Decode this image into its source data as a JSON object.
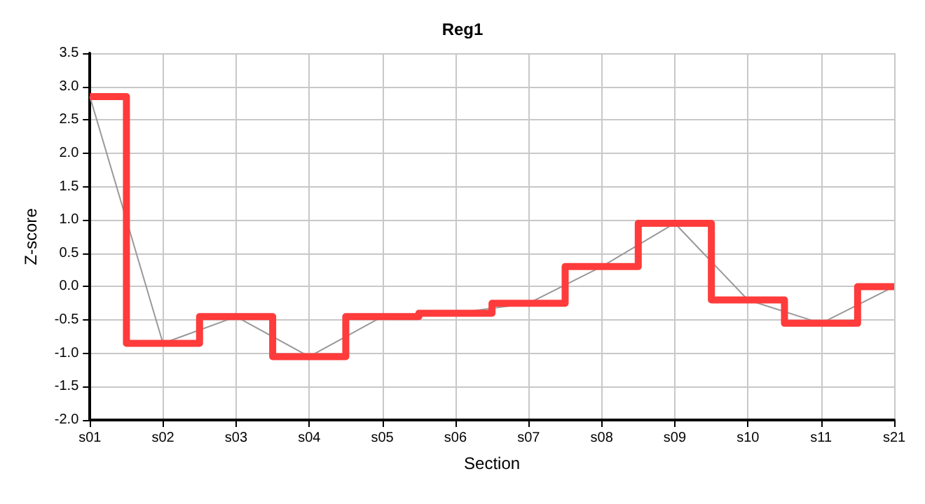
{
  "chart_data": {
    "type": "line",
    "title": "Reg1",
    "xlabel": "Section",
    "ylabel": "Z-score",
    "categories": [
      "s01",
      "s02",
      "s03",
      "s04",
      "s05",
      "s06",
      "s07",
      "s08",
      "s09",
      "s10",
      "s11",
      "s21"
    ],
    "series": [
      {
        "type": "step",
        "color": "#ff3b3b",
        "values": [
          2.85,
          -0.85,
          -0.45,
          -1.05,
          -0.45,
          -0.4,
          -0.25,
          0.3,
          0.95,
          -0.2,
          -0.55,
          0
        ]
      },
      {
        "color": "#999999",
        "values": [
          2.85,
          -0.85,
          -0.45,
          -1.05,
          -0.45,
          -0.4,
          -0.25,
          0.3,
          0.95,
          -0.2,
          -0.55,
          0
        ]
      }
    ],
    "ylim": [
      -2,
      3.5
    ],
    "yticks": [
      {
        "value": -2,
        "label": "-2.0"
      },
      {
        "value": -1.5,
        "label": "-1.5"
      },
      {
        "value": -1,
        "label": "-1.0"
      },
      {
        "value": -0.5,
        "label": "-0.5"
      },
      {
        "value": 0,
        "label": "0.0"
      },
      {
        "value": 0.5,
        "label": "0.5"
      },
      {
        "value": 1,
        "label": "1.0"
      },
      {
        "value": 1.5,
        "label": "1.5"
      },
      {
        "value": 2,
        "label": "2.0"
      },
      {
        "value": 2.5,
        "label": "2.5"
      },
      {
        "value": 3,
        "label": "3.0"
      },
      {
        "value": 3.5,
        "label": "3.5"
      }
    ],
    "grid": true,
    "marker": "none"
  }
}
